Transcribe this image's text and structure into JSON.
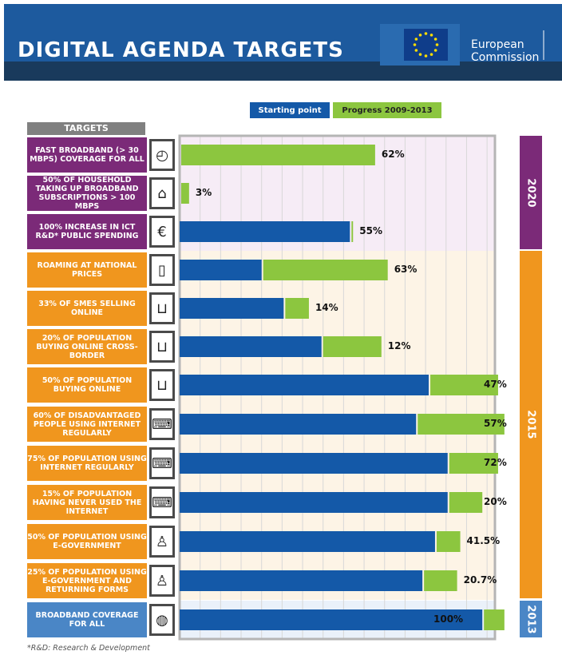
{
  "header": {
    "title": "DIGITAL AGENDA TARGETS",
    "org_line1": "European",
    "org_line2": "Commission"
  },
  "legend": {
    "starting": "Starting point",
    "progress": "Progress 2009-2013"
  },
  "targets_header": "TARGETS",
  "footnote": "*R&D: Research & Development",
  "colors": {
    "start": "#1459a8",
    "progress": "#8cc63f",
    "purple": "#7b2a78",
    "orange": "#f0961e",
    "blue": "#4a86c6"
  },
  "chart_data": {
    "type": "bar",
    "orientation": "horizontal",
    "stacked": true,
    "xlim": [
      0,
      100
    ],
    "series": [
      {
        "name": "Starting point",
        "values": [
          0,
          0,
          54,
          26,
          33,
          45,
          79,
          75,
          85,
          85,
          81,
          77,
          96
        ]
      },
      {
        "name": "Progress 2009-2013",
        "values": [
          62,
          3,
          1,
          40,
          8,
          19,
          22,
          28,
          16,
          11,
          8,
          11,
          7
        ]
      }
    ],
    "items": [
      {
        "label": "FAST BROADBAND (> 30 MBPS) COVERAGE FOR ALL",
        "value_label": "62%",
        "group": "2020",
        "icon": "speedometer-icon"
      },
      {
        "label": "50% OF HOUSEHOLD TAKING UP BROADBAND SUBSCRIPTIONS > 100 MBPS",
        "value_label": "3%",
        "group": "2020",
        "icon": "house-icon"
      },
      {
        "label": "100% INCREASE IN ICT R&D* PUBLIC SPENDING",
        "value_label": "55%",
        "group": "2020",
        "icon": "euro-icon"
      },
      {
        "label": "ROAMING AT NATIONAL PRICES",
        "value_label": "63%",
        "group": "2015",
        "icon": "mobile-phone-icon"
      },
      {
        "label": "33% OF SMES SELLING ONLINE",
        "value_label": "14%",
        "group": "2015",
        "icon": "shopping-basket-icon"
      },
      {
        "label": "20% OF POPULATION BUYING ONLINE CROSS-BORDER",
        "value_label": "12%",
        "group": "2015",
        "icon": "shopping-basket-icon"
      },
      {
        "label": "50% OF POPULATION BUYING ONLINE",
        "value_label": "47%",
        "group": "2015",
        "icon": "shopping-basket-icon"
      },
      {
        "label": "60% OF DISADVANTAGED PEOPLE USING INTERNET REGULARLY",
        "value_label": "57%",
        "group": "2015",
        "icon": "computer-wifi-icon"
      },
      {
        "label": "75% OF POPULATION USING INTERNET REGULARLY",
        "value_label": "72%",
        "group": "2015",
        "icon": "computer-wifi-icon"
      },
      {
        "label": "15% OF POPULATION HAVING NEVER USED THE INTERNET",
        "value_label": "20%",
        "group": "2015",
        "icon": "computer-wifi-icon"
      },
      {
        "label": "50% OF POPULATION USING E-GOVERNMENT",
        "value_label": "41.5%",
        "group": "2015",
        "icon": "person-icon"
      },
      {
        "label": "25% OF POPULATION USING E-GOVERNMENT AND RETURNING FORMS",
        "value_label": "20.7%",
        "group": "2015",
        "icon": "person-icon"
      },
      {
        "label": "BROADBAND COVERAGE FOR ALL",
        "value_label": "100%",
        "group": "2013",
        "icon": "globe-computer-icon"
      }
    ],
    "groups": [
      {
        "year": "2020",
        "color": "#7b2a78"
      },
      {
        "year": "2015",
        "color": "#f0961e"
      },
      {
        "year": "2013",
        "color": "#4a86c6"
      }
    ],
    "grid": true
  }
}
